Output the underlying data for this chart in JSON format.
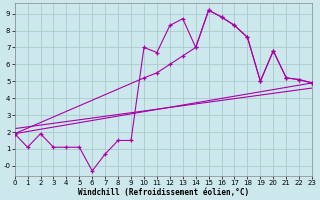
{
  "xlabel": "Windchill (Refroidissement éolien,°C)",
  "bg_color": "#cce8ec",
  "grid_color": "#aacccc",
  "line_color": "#aa00aa",
  "xlim": [
    0,
    23
  ],
  "ylim": [
    -0.6,
    9.6
  ],
  "xticks": [
    0,
    1,
    2,
    3,
    4,
    5,
    6,
    7,
    8,
    9,
    10,
    11,
    12,
    13,
    14,
    15,
    16,
    17,
    18,
    19,
    20,
    21,
    22,
    23
  ],
  "yticks": [
    0,
    1,
    2,
    3,
    4,
    5,
    6,
    7,
    8,
    9
  ],
  "ytick_labels": [
    "-0",
    "1",
    "2",
    "3",
    "4",
    "5",
    "6",
    "7",
    "8",
    "9"
  ],
  "line1_x": [
    0,
    1,
    2,
    3,
    4,
    5,
    6,
    7,
    8,
    9,
    10,
    11,
    12,
    13,
    14,
    15,
    16,
    17,
    18,
    19,
    20,
    21,
    22,
    23
  ],
  "line1_y": [
    1.9,
    1.1,
    1.9,
    1.1,
    1.1,
    1.1,
    -0.3,
    0.7,
    1.5,
    1.5,
    7.0,
    6.7,
    8.3,
    8.7,
    7.0,
    9.2,
    8.8,
    8.3,
    7.6,
    5.0,
    6.8,
    5.2,
    5.1,
    4.9
  ],
  "line2_x": [
    0,
    10,
    11,
    12,
    13,
    14,
    15,
    16,
    17,
    18,
    19,
    20,
    21,
    22,
    23
  ],
  "line2_y": [
    1.9,
    5.2,
    5.5,
    6.0,
    6.5,
    7.0,
    9.2,
    8.8,
    8.3,
    7.6,
    5.0,
    6.8,
    5.2,
    5.1,
    4.9
  ],
  "line3_x": [
    0,
    23
  ],
  "line3_y": [
    1.9,
    4.9
  ],
  "line4_x": [
    0,
    23
  ],
  "line4_y": [
    2.2,
    4.6
  ]
}
